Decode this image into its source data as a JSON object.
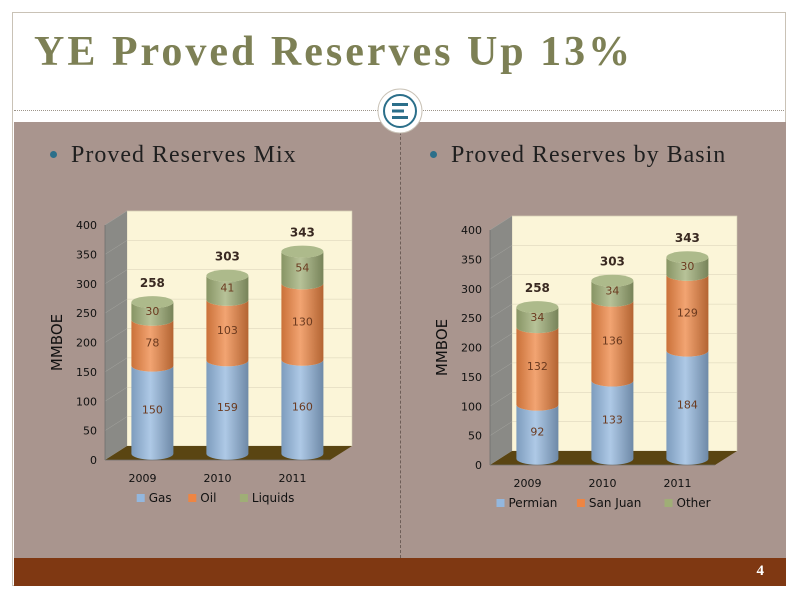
{
  "slide": {
    "title": "YE Proved Reserves Up 13%",
    "page_number": "4"
  },
  "left": {
    "bullet": "Proved Reserves Mix"
  },
  "right": {
    "bullet": "Proved Reserves by Basin"
  },
  "colors": {
    "title": "#7d8055",
    "panel": "#a9958e",
    "footer": "#7f3812",
    "series_blue": "#93b7de",
    "series_orange": "#ee8543",
    "series_green": "#9fae76"
  },
  "chart_data": [
    {
      "type": "bar",
      "stacked": true,
      "categories": [
        "2009",
        "2010",
        "2011"
      ],
      "series": [
        {
          "name": "Gas",
          "values": [
            150,
            159,
            160
          ],
          "color": "#93b7de"
        },
        {
          "name": "Oil",
          "values": [
            78,
            103,
            130
          ],
          "color": "#ee8543"
        },
        {
          "name": "Liquids",
          "values": [
            30,
            41,
            54
          ],
          "color": "#9fae76"
        }
      ],
      "totals": [
        258,
        303,
        343
      ],
      "ylabel": "MMBOE",
      "ylim": [
        0,
        400
      ],
      "yticks": [
        0,
        50,
        100,
        150,
        200,
        250,
        300,
        350,
        400
      ],
      "legend": "bottom"
    },
    {
      "type": "bar",
      "stacked": true,
      "categories": [
        "2009",
        "2010",
        "2011"
      ],
      "series": [
        {
          "name": "Permian",
          "values": [
            92,
            133,
            184
          ],
          "color": "#93b7de"
        },
        {
          "name": "San Juan",
          "values": [
            132,
            136,
            129
          ],
          "color": "#ee8543"
        },
        {
          "name": "Other",
          "values": [
            34,
            34,
            30
          ],
          "color": "#9fae76"
        }
      ],
      "totals": [
        258,
        303,
        343
      ],
      "ylabel": "MMBOE",
      "ylim": [
        0,
        400
      ],
      "yticks": [
        0,
        50,
        100,
        150,
        200,
        250,
        300,
        350,
        400
      ],
      "legend": "bottom"
    }
  ]
}
